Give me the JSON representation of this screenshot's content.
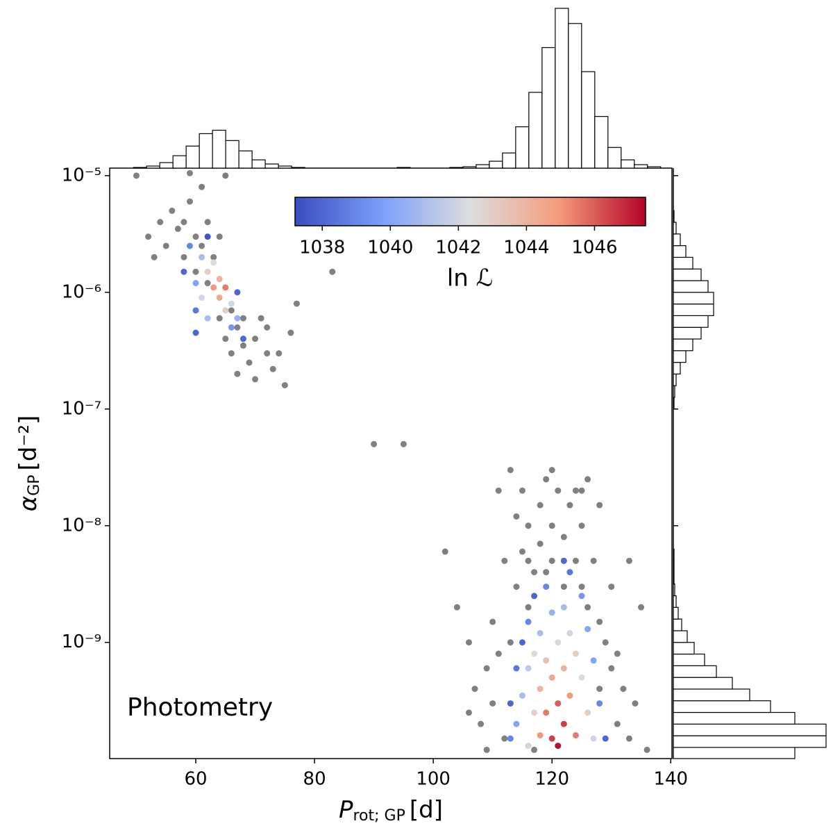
{
  "chart_data": {
    "type": "scatter",
    "xlabel": {
      "symbol": "P",
      "sub": "rot; GP",
      "unit": "[d]"
    },
    "ylabel": {
      "symbol": "α",
      "sub": "GP",
      "unit": "[d⁻²]"
    },
    "annotation": "Photometry",
    "xlim": [
      45.5,
      140.2
    ],
    "xticks": [
      60,
      80,
      100,
      120,
      140
    ],
    "ylim": [
      1.01e-10,
      1.16e-05
    ],
    "yscale": "log",
    "yticks": [
      {
        "value": 1e-05,
        "label": "10⁻⁵"
      },
      {
        "value": 1e-06,
        "label": "10⁻⁶"
      },
      {
        "value": 1e-07,
        "label": "10⁻⁷"
      },
      {
        "value": 1e-08,
        "label": "10⁻⁸"
      },
      {
        "value": 1e-09,
        "label": "10⁻⁹"
      }
    ],
    "gray_points": {
      "color": "#808080",
      "x": [
        52,
        54,
        55,
        56,
        57,
        58,
        58,
        59,
        60,
        60,
        61,
        61,
        62,
        62,
        63,
        64,
        65,
        64,
        65,
        66,
        66,
        67,
        67,
        68,
        68,
        69,
        70,
        70,
        71,
        72,
        72,
        73,
        74,
        75,
        76,
        77,
        59,
        50,
        83,
        53,
        90,
        95,
        102,
        104,
        106,
        107,
        108,
        109,
        110,
        110,
        111,
        111,
        112,
        112,
        113,
        113,
        114,
        114,
        115,
        115,
        116,
        116,
        117,
        117,
        118,
        118,
        119,
        119,
        120,
        120,
        121,
        122,
        122,
        123,
        124,
        124,
        125,
        125,
        126,
        126,
        127,
        128,
        128,
        129,
        130,
        130,
        131,
        131,
        132,
        133,
        133,
        134,
        135,
        136,
        128,
        125,
        120,
        116,
        109,
        106
      ],
      "y": [
        3e-06,
        4e-06,
        2.5e-06,
        5e-06,
        3.5e-06,
        2e-06,
        4e-06,
        6e-06,
        3e-06,
        1.5e-06,
        8e-06,
        2.5e-06,
        4e-06,
        1.2e-06,
        2e-06,
        3e-06,
        1e-05,
        6e-07,
        4e-07,
        7e-07,
        3e-07,
        5e-07,
        2e-07,
        6e-07,
        3.5e-07,
        2.5e-07,
        4e-07,
        1.8e-07,
        6e-07,
        3e-07,
        5e-07,
        2.2e-07,
        3e-07,
        1.6e-07,
        4.5e-07,
        8e-07,
        1.05e-05,
        1e-05,
        1.5e-06,
        2e-06,
        5e-08,
        5e-08,
        6e-09,
        2e-09,
        1e-09,
        4e-10,
        2e-10,
        6e-10,
        1.5e-09,
        3e-10,
        2e-08,
        8e-10,
        5e-09,
        1.5e-10,
        3e-08,
        1e-09,
        1.2e-08,
        3e-09,
        2e-08,
        6e-09,
        1e-08,
        2e-09,
        4e-09,
        1.2e-10,
        1.5e-08,
        7e-09,
        2.5e-08,
        4e-09,
        1e-08,
        5e-09,
        2e-08,
        8e-09,
        3e-09,
        1.5e-08,
        5e-09,
        2e-08,
        3e-09,
        1e-08,
        2.5e-08,
        2e-09,
        5e-09,
        1.5e-09,
        4e-10,
        1e-09,
        3e-09,
        6e-10,
        2e-10,
        8e-10,
        4e-10,
        5e-09,
        1.5e-10,
        3e-10,
        2e-09,
        1.2e-10,
        1.5e-08,
        2e-08,
        3e-08,
        5e-09,
        1.2e-10,
        2.5e-10
      ]
    },
    "colored_points": {
      "x": [
        58,
        59,
        60,
        60,
        61,
        61,
        62,
        62,
        63,
        63,
        64,
        64,
        65,
        65,
        66,
        66,
        67,
        67,
        68,
        62,
        60,
        113,
        113,
        114,
        114,
        115,
        115,
        116,
        116,
        116,
        117,
        117,
        117,
        118,
        118,
        118,
        119,
        119,
        119,
        120,
        120,
        120,
        121,
        121,
        121,
        122,
        122,
        122,
        123,
        123,
        123,
        124,
        124,
        125,
        125,
        126,
        126,
        127,
        127,
        128,
        129,
        122
      ],
      "y": [
        1.5e-06,
        2.5e-06,
        1.2e-06,
        7e-07,
        2e-06,
        9e-07,
        1.5e-06,
        6e-07,
        1.1e-06,
        1.8e-06,
        9e-07,
        1.3e-06,
        7e-07,
        1.1e-06,
        8e-07,
        5e-07,
        6e-07,
        1e-06,
        4e-07,
        3e-06,
        4.5e-07,
        3e-10,
        1.5e-10,
        6e-10,
        2e-10,
        1e-09,
        3.5e-10,
        1.5e-09,
        6e-10,
        1.3e-10,
        2.5e-09,
        8e-10,
        2.5e-10,
        1.2e-09,
        4e-10,
        1.6e-10,
        3e-09,
        7e-10,
        2.5e-10,
        1.8e-09,
        5e-10,
        1.5e-10,
        1e-09,
        3e-10,
        1.3e-10,
        2e-09,
        6e-10,
        2e-10,
        4e-09,
        1.2e-09,
        3.5e-10,
        8e-10,
        1.6e-10,
        2.5e-09,
        5e-10,
        1.3e-09,
        2.5e-10,
        7e-10,
        1.5e-10,
        3e-10,
        1.5e-10,
        5e-09
      ],
      "c": [
        1038,
        1039,
        1040,
        1038.5,
        1041,
        1042,
        1043,
        1041,
        1045,
        1042.5,
        1044.5,
        1044,
        1043,
        1045.5,
        1042,
        1039.5,
        1040.5,
        1038,
        1038,
        1037.5,
        1038,
        1038,
        1039,
        1038.5,
        1040,
        1038,
        1041,
        1039,
        1041.5,
        1042,
        1038,
        1042.5,
        1043,
        1041,
        1044,
        1045,
        1039,
        1043.5,
        1045.5,
        1040.5,
        1044.5,
        1046.5,
        1042.5,
        1046,
        1047.3,
        1041,
        1044,
        1046.5,
        1038.5,
        1042,
        1045,
        1043,
        1045.5,
        1039.5,
        1042.5,
        1040,
        1043,
        1040,
        1042,
        1039,
        1038,
        1038
      ]
    },
    "colorbar": {
      "label": "ln ℒ",
      "colormap": "coolwarm",
      "clim": [
        1037.2,
        1047.5
      ],
      "ticks": [
        1038,
        1040,
        1042,
        1044,
        1046
      ]
    },
    "x_histogram": {
      "bins": [
        49.5,
        51.72,
        53.94,
        56.16,
        58.38,
        60.6,
        62.82,
        65.04,
        67.26,
        69.48,
        71.7,
        73.92,
        76.14,
        78.36,
        80.58,
        82.8,
        85.02,
        87.24,
        89.46,
        91.68,
        93.9,
        96.12,
        98.34,
        100.56,
        102.78,
        105,
        107.22,
        109.44,
        111.66,
        113.88,
        116.1,
        118.32,
        120.54,
        122.76,
        124.98,
        127.2,
        129.42,
        131.64,
        133.86,
        136.08,
        138.3
      ],
      "counts": [
        1,
        3,
        8,
        18,
        32,
        50,
        55,
        40,
        25,
        12,
        6,
        3,
        1,
        0,
        0,
        0,
        0,
        0,
        0,
        0,
        1,
        0,
        0,
        0,
        1,
        2,
        5,
        10,
        22,
        60,
        110,
        175,
        232,
        210,
        140,
        75,
        30,
        12,
        5,
        2
      ]
    },
    "y_histogram": {
      "bins": [
        1e-10,
        1.259e-10,
        1.585e-10,
        1.995e-10,
        2.512e-10,
        3.162e-10,
        3.981e-10,
        5.012e-10,
        6.31e-10,
        7.943e-10,
        1e-09,
        1.259e-09,
        1.585e-09,
        1.995e-09,
        2.512e-09,
        3.162e-09,
        3.981e-09,
        5.012e-09,
        6.31e-09,
        7.943e-09,
        1e-08,
        1.259e-08,
        1.585e-08,
        1.995e-08,
        2.512e-08,
        3.162e-08,
        3.981e-08,
        5.012e-08,
        6.31e-08,
        7.943e-08,
        1e-07,
        1.259e-07,
        1.585e-07,
        1.995e-07,
        2.512e-07,
        3.162e-07,
        3.981e-07,
        5.012e-07,
        6.31e-07,
        7.943e-07,
        1e-06,
        1.259e-06,
        1.585e-06,
        1.995e-06,
        2.512e-06,
        3.162e-06,
        3.981e-06,
        5.012e-06,
        6.31e-06
      ],
      "counts": [
        175,
        220,
        220,
        175,
        140,
        110,
        85,
        62,
        45,
        30,
        20,
        12,
        7,
        4,
        2,
        1,
        1,
        1,
        0,
        0,
        0,
        0,
        0,
        0,
        0,
        0,
        0,
        0,
        0,
        0,
        1,
        2,
        4,
        10,
        18,
        28,
        40,
        50,
        58,
        58,
        50,
        40,
        28,
        18,
        10,
        4,
        1,
        0
      ]
    }
  }
}
